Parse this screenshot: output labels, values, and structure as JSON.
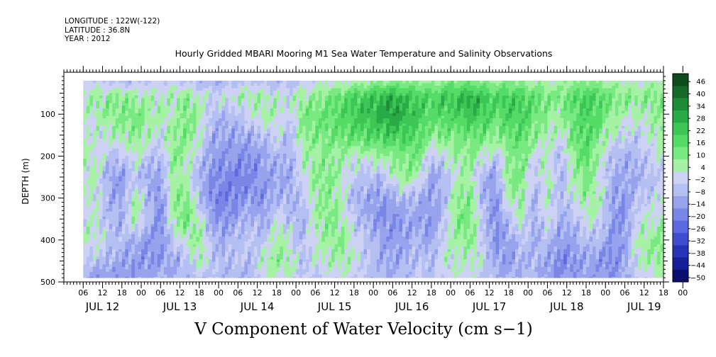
{
  "header": {
    "longitude": "LONGITUDE : 122W(-122)",
    "latitude": "LATITUDE : 36.8N",
    "year": "YEAR : 2012",
    "title": "Hourly Gridded MBARI Mooring M1 Sea Water Temperature and Salinity Observations"
  },
  "footer": {
    "variable_label": "V Component of Water Velocity (cm s−1)"
  },
  "chart_data": {
    "type": "heatmap",
    "title": "Hourly Gridded MBARI Mooring M1 Sea Water Temperature and Salinity Observations",
    "xlabel": "",
    "ylabel": "DEPTH (m)",
    "y_ticks": [
      "100",
      "200",
      "300",
      "400",
      "500"
    ],
    "y_range": [
      0,
      500
    ],
    "y_inverted": true,
    "data_depth_range": [
      20,
      490
    ],
    "x_hour_ticks": [
      "06",
      "12",
      "18",
      "00",
      "06",
      "12",
      "18",
      "00",
      "06",
      "12",
      "18",
      "00",
      "06",
      "12",
      "18",
      "00",
      "06",
      "12",
      "18",
      "00",
      "06",
      "12",
      "18",
      "00",
      "06",
      "12",
      "18",
      "00",
      "06",
      "12",
      "18",
      "00"
    ],
    "x_day_labels": [
      "JUL 12",
      "JUL 13",
      "JUL 14",
      "JUL 15",
      "JUL 16",
      "JUL 17",
      "JUL 18",
      "JUL 19"
    ],
    "x_range_hours": [
      0,
      186
    ],
    "data_time_range_hours": [
      6,
      186
    ],
    "colorbar": {
      "labels": [
        "46",
        "40",
        "34",
        "28",
        "22",
        "16",
        "10",
        "4",
        "−2",
        "−8",
        "−14",
        "−20",
        "−26",
        "−32",
        "−38",
        "−44",
        "−50"
      ],
      "colors": [
        "#0d4a1c",
        "#156a29",
        "#1e8b36",
        "#28ab45",
        "#3cc655",
        "#55dc66",
        "#79e981",
        "#a6f2a4",
        "#cdd2f5",
        "#b4bff2",
        "#97a3ed",
        "#7a86e6",
        "#5d6adf",
        "#404dd0",
        "#2734b8",
        "#151f97",
        "#0a0f6e"
      ],
      "range": [
        -50,
        52
      ]
    },
    "field_pattern": {
      "columns": [
        {
          "t": 6,
          "profile": [
            0.0,
            6,
            4,
            3,
            5,
            4,
            3,
            4,
            5,
            -2,
            -10
          ]
        },
        {
          "t": 10,
          "profile": [
            0.0,
            8,
            6,
            2,
            4,
            5,
            4,
            3,
            4,
            -4,
            -14
          ]
        },
        {
          "t": 14,
          "profile": [
            -4,
            10,
            12,
            3,
            -2,
            -10,
            -8,
            -6,
            -2,
            -8,
            -12
          ]
        },
        {
          "t": 18,
          "profile": [
            -6,
            12,
            10,
            8,
            -4,
            -12,
            -10,
            -8,
            -6,
            -10,
            -14
          ]
        },
        {
          "t": 22,
          "profile": [
            -4,
            8,
            14,
            10,
            6,
            -4,
            8,
            10,
            -8,
            -12,
            -12
          ]
        },
        {
          "t": 26,
          "profile": [
            -2,
            6,
            8,
            6,
            -2,
            -10,
            -6,
            -4,
            -12,
            -14,
            -10
          ]
        },
        {
          "t": 30,
          "profile": [
            0,
            4,
            6,
            2,
            -6,
            -10,
            -14,
            -16,
            -14,
            -12,
            -8
          ]
        },
        {
          "t": 34,
          "profile": [
            0,
            8,
            4,
            10,
            12,
            8,
            10,
            8,
            -2,
            -10,
            -8
          ]
        },
        {
          "t": 38,
          "profile": [
            -2,
            10,
            14,
            12,
            8,
            4,
            12,
            14,
            6,
            -4,
            -6
          ]
        },
        {
          "t": 42,
          "profile": [
            -6,
            4,
            6,
            6,
            -2,
            -8,
            -4,
            4,
            10,
            6,
            -4
          ]
        },
        {
          "t": 46,
          "profile": [
            -8,
            2,
            -4,
            -8,
            -12,
            -14,
            -16,
            -10,
            -6,
            -2,
            -4
          ]
        },
        {
          "t": 50,
          "profile": [
            -6,
            2,
            -6,
            -10,
            -12,
            -16,
            -18,
            -14,
            -8,
            -6,
            -6
          ]
        },
        {
          "t": 54,
          "profile": [
            -4,
            6,
            -2,
            -10,
            -14,
            -18,
            -16,
            -10,
            -4,
            -2,
            -6
          ]
        },
        {
          "t": 58,
          "profile": [
            -2,
            8,
            2,
            -8,
            -14,
            -16,
            -12,
            -6,
            -2,
            -6,
            -8
          ]
        },
        {
          "t": 62,
          "profile": [
            -4,
            6,
            8,
            -4,
            -10,
            -12,
            -14,
            -10,
            -4,
            6,
            4
          ]
        },
        {
          "t": 66,
          "profile": [
            -6,
            4,
            6,
            2,
            -6,
            -10,
            -6,
            2,
            8,
            10,
            4
          ]
        },
        {
          "t": 70,
          "profile": [
            -4,
            2,
            -2,
            -6,
            -8,
            -10,
            -8,
            -4,
            2,
            8,
            2
          ]
        },
        {
          "t": 74,
          "profile": [
            -2,
            8,
            12,
            10,
            6,
            2,
            -4,
            -8,
            -6,
            -4,
            -2
          ]
        },
        {
          "t": 78,
          "profile": [
            0,
            10,
            14,
            12,
            8,
            10,
            8,
            6,
            4,
            2,
            -2
          ]
        },
        {
          "t": 82,
          "profile": [
            2,
            14,
            16,
            14,
            10,
            12,
            10,
            12,
            10,
            6,
            0
          ]
        },
        {
          "t": 86,
          "profile": [
            2,
            18,
            20,
            16,
            8,
            6,
            4,
            8,
            10,
            8,
            2
          ]
        },
        {
          "t": 90,
          "profile": [
            4,
            22,
            24,
            18,
            4,
            -2,
            -6,
            -4,
            2,
            4,
            0
          ]
        },
        {
          "t": 94,
          "profile": [
            6,
            24,
            26,
            20,
            6,
            -4,
            -10,
            -8,
            -4,
            -2,
            -4
          ]
        },
        {
          "t": 98,
          "profile": [
            8,
            28,
            30,
            22,
            8,
            -6,
            -12,
            -14,
            -10,
            -8,
            -6
          ]
        },
        {
          "t": 102,
          "profile": [
            10,
            30,
            34,
            24,
            10,
            4,
            -10,
            -14,
            -12,
            -10,
            -8
          ]
        },
        {
          "t": 106,
          "profile": [
            10,
            26,
            28,
            22,
            12,
            10,
            -4,
            -12,
            -10,
            -8,
            -6
          ]
        },
        {
          "t": 110,
          "profile": [
            8,
            22,
            24,
            20,
            14,
            6,
            -8,
            -10,
            -6,
            -4,
            -2
          ]
        },
        {
          "t": 114,
          "profile": [
            8,
            20,
            18,
            10,
            -4,
            -10,
            -12,
            -14,
            -10,
            -6,
            -4
          ]
        },
        {
          "t": 118,
          "profile": [
            10,
            24,
            20,
            14,
            2,
            -8,
            -6,
            -4,
            2,
            4,
            0
          ]
        },
        {
          "t": 122,
          "profile": [
            12,
            26,
            22,
            12,
            8,
            6,
            10,
            12,
            8,
            4,
            2
          ]
        },
        {
          "t": 126,
          "profile": [
            12,
            30,
            26,
            16,
            10,
            8,
            12,
            14,
            10,
            6,
            2
          ]
        },
        {
          "t": 130,
          "profile": [
            10,
            26,
            24,
            14,
            4,
            -8,
            -6,
            -4,
            -2,
            0,
            -2
          ]
        },
        {
          "t": 134,
          "profile": [
            8,
            20,
            18,
            10,
            -2,
            -12,
            -14,
            -16,
            -14,
            -10,
            -6
          ]
        },
        {
          "t": 138,
          "profile": [
            10,
            24,
            22,
            16,
            10,
            12,
            6,
            -4,
            -10,
            -12,
            -8
          ]
        },
        {
          "t": 142,
          "profile": [
            8,
            20,
            22,
            18,
            14,
            12,
            10,
            6,
            -2,
            -8,
            -6
          ]
        },
        {
          "t": 146,
          "profile": [
            6,
            18,
            16,
            10,
            2,
            -4,
            -8,
            -10,
            -8,
            -6,
            -4
          ]
        },
        {
          "t": 150,
          "profile": [
            4,
            14,
            10,
            6,
            4,
            8,
            6,
            4,
            -4,
            -10,
            -12
          ]
        },
        {
          "t": 154,
          "profile": [
            6,
            12,
            8,
            2,
            -6,
            -8,
            -6,
            -8,
            -12,
            -16,
            -14
          ]
        },
        {
          "t": 158,
          "profile": [
            8,
            18,
            16,
            14,
            10,
            6,
            2,
            -6,
            -10,
            -14,
            -12
          ]
        },
        {
          "t": 162,
          "profile": [
            10,
            24,
            22,
            20,
            18,
            14,
            10,
            4,
            -4,
            -10,
            -10
          ]
        },
        {
          "t": 166,
          "profile": [
            8,
            20,
            18,
            12,
            6,
            4,
            6,
            2,
            -6,
            -12,
            -12
          ]
        },
        {
          "t": 170,
          "profile": [
            6,
            14,
            10,
            4,
            -4,
            -8,
            -10,
            -12,
            -14,
            -16,
            -14
          ]
        },
        {
          "t": 174,
          "profile": [
            4,
            12,
            6,
            0,
            -8,
            -10,
            -12,
            -14,
            -12,
            -10,
            -8
          ]
        },
        {
          "t": 178,
          "profile": [
            2,
            10,
            4,
            -2,
            -6,
            -8,
            -4,
            2,
            6,
            4,
            -2
          ]
        },
        {
          "t": 182,
          "profile": [
            4,
            12,
            8,
            4,
            0,
            -4,
            -2,
            4,
            10,
            8,
            2
          ]
        },
        {
          "t": 186,
          "profile": [
            6,
            14,
            10,
            8,
            4,
            0,
            2,
            6,
            12,
            10,
            4
          ]
        }
      ],
      "profile_depths": [
        20,
        60,
        100,
        150,
        200,
        250,
        300,
        350,
        400,
        450,
        490
      ]
    }
  }
}
